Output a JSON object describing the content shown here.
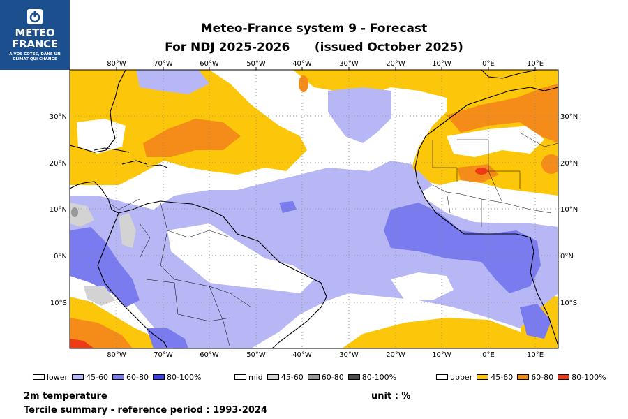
{
  "logo": {
    "brand_line1": "METEO",
    "brand_line2": "FRANCE",
    "tagline": "À VOS CÔTÉS, DANS UN CLIMAT QUI CHANGE",
    "background": "#1c4f8e"
  },
  "title": {
    "line1": "Meteo-France system 9  -  Forecast",
    "line2a": "For NDJ 2025-2026",
    "line2b": "(issued October 2025)"
  },
  "map": {
    "lon_labels": [
      "80°W",
      "70°W",
      "60°W",
      "50°W",
      "40°W",
      "30°W",
      "20°W",
      "10°W",
      "0°E",
      "10°E"
    ],
    "lat_labels": [
      "30°N",
      "20°N",
      "10°N",
      "0°N",
      "10°S"
    ],
    "colors": {
      "lower_45_60": "#b7b7f5",
      "lower_60_80": "#7b7bf0",
      "lower_80_100": "#3c3ce6",
      "mid_45_60": "#d3d3d3",
      "mid_60_80": "#999999",
      "mid_80_100": "#4d4d4d",
      "upper_45_60": "#fcc70a",
      "upper_60_80": "#f58c1a",
      "upper_80_100": "#ee3a16"
    }
  },
  "legend": {
    "lower": {
      "label": "lower",
      "items": [
        "45-60",
        "60-80",
        "80-100%"
      ]
    },
    "mid": {
      "label": "mid",
      "items": [
        "45-60",
        "60-80",
        "80-100%"
      ]
    },
    "upper": {
      "label": "upper",
      "items": [
        "45-60",
        "60-80",
        "80-100%"
      ]
    }
  },
  "footer": {
    "variable": "2m temperature",
    "unit": "unit : %",
    "summary": "Tercile summary - reference period : 1993-2024"
  }
}
